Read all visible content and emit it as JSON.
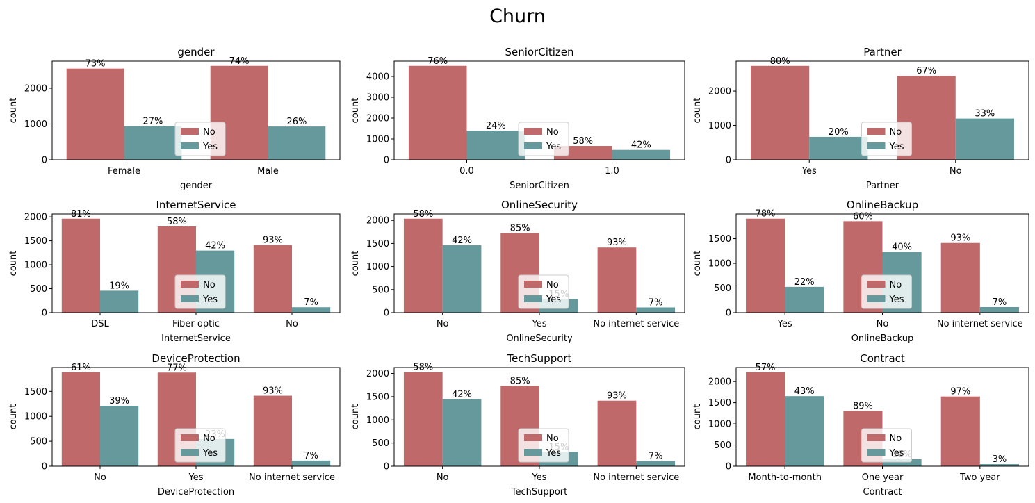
{
  "figure": {
    "suptitle": "Churn"
  },
  "colors": {
    "no": "#c0696b",
    "yes": "#65999b",
    "axis": "#000000"
  },
  "chart_data": [
    {
      "type": "bar",
      "title": "gender",
      "xlabel": "gender",
      "ylabel": "count",
      "categories": [
        "Female",
        "Male"
      ],
      "series": [
        {
          "name": "No",
          "values": [
            2549,
            2625
          ]
        },
        {
          "name": "Yes",
          "values": [
            939,
            930
          ]
        }
      ],
      "percent_labels": [
        [
          "73%",
          "74%"
        ],
        [
          "27%",
          "26%"
        ]
      ],
      "yticks": [
        0,
        1000,
        2000
      ],
      "ylim": [
        0,
        2756
      ],
      "legend": {
        "title": "",
        "entries": [
          "No",
          "Yes"
        ],
        "loc": "lower center"
      }
    },
    {
      "type": "bar",
      "title": "SeniorCitizen",
      "xlabel": "SeniorCitizen",
      "ylabel": "count",
      "categories": [
        "0.0",
        "1.0"
      ],
      "series": [
        {
          "name": "No",
          "values": [
            4508,
            666
          ]
        },
        {
          "name": "Yes",
          "values": [
            1393,
            476
          ]
        }
      ],
      "percent_labels": [
        [
          "76%",
          "58%"
        ],
        [
          "24%",
          "42%"
        ]
      ],
      "yticks": [
        0,
        1000,
        2000,
        3000,
        4000
      ],
      "ylim": [
        0,
        4733
      ],
      "legend": {
        "title": "",
        "entries": [
          "No",
          "Yes"
        ],
        "loc": "lower center"
      }
    },
    {
      "type": "bar",
      "title": "Partner",
      "xlabel": "Partner",
      "ylabel": "count",
      "categories": [
        "Yes",
        "No"
      ],
      "series": [
        {
          "name": "No",
          "values": [
            2733,
            2441
          ]
        },
        {
          "name": "Yes",
          "values": [
            669,
            1200
          ]
        }
      ],
      "percent_labels": [
        [
          "80%",
          "67%"
        ],
        [
          "20%",
          "33%"
        ]
      ],
      "yticks": [
        0,
        1000,
        2000
      ],
      "ylim": [
        0,
        2870
      ],
      "legend": {
        "title": "",
        "entries": [
          "No",
          "Yes"
        ],
        "loc": "lower center"
      }
    },
    {
      "type": "bar",
      "title": "InternetService",
      "xlabel": "InternetService",
      "ylabel": "count",
      "categories": [
        "DSL",
        "Fiber optic",
        "No"
      ],
      "series": [
        {
          "name": "No",
          "values": [
            1962,
            1799,
            1413
          ]
        },
        {
          "name": "Yes",
          "values": [
            459,
            1297,
            113
          ]
        }
      ],
      "percent_labels": [
        [
          "81%",
          "58%",
          "93%"
        ],
        [
          "19%",
          "42%",
          "7%"
        ]
      ],
      "yticks": [
        0,
        500,
        1000,
        1500,
        2000
      ],
      "ylim": [
        0,
        2060
      ],
      "legend": {
        "title": "",
        "entries": [
          "No",
          "Yes"
        ],
        "loc": "lower center"
      }
    },
    {
      "type": "bar",
      "title": "OnlineSecurity",
      "xlabel": "OnlineSecurity",
      "ylabel": "count",
      "categories": [
        "No",
        "Yes",
        "No internet service"
      ],
      "series": [
        {
          "name": "No",
          "values": [
            2037,
            1724,
            1413
          ]
        },
        {
          "name": "Yes",
          "values": [
            1461,
            295,
            113
          ]
        }
      ],
      "percent_labels": [
        [
          "58%",
          "85%",
          "93%"
        ],
        [
          "42%",
          "15%",
          "7%"
        ]
      ],
      "yticks": [
        0,
        500,
        1000,
        1500,
        2000
      ],
      "ylim": [
        0,
        2139
      ],
      "legend": {
        "title": "",
        "entries": [
          "No",
          "Yes"
        ],
        "loc": "lower center"
      }
    },
    {
      "type": "bar",
      "title": "OnlineBackup",
      "xlabel": "OnlineBackup",
      "ylabel": "count",
      "categories": [
        "Yes",
        "No",
        "No internet service"
      ],
      "series": [
        {
          "name": "No",
          "values": [
            1906,
            1855,
            1413
          ]
        },
        {
          "name": "Yes",
          "values": [
            523,
            1233,
            113
          ]
        }
      ],
      "percent_labels": [
        [
          "78%",
          "60%",
          "93%"
        ],
        [
          "22%",
          "40%",
          "7%"
        ]
      ],
      "yticks": [
        0,
        500,
        1000,
        1500
      ],
      "ylim": [
        0,
        2001
      ],
      "legend": {
        "title": "",
        "entries": [
          "No",
          "Yes"
        ],
        "loc": "lower center"
      }
    },
    {
      "type": "bar",
      "title": "DeviceProtection",
      "xlabel": "DeviceProtection",
      "ylabel": "count",
      "categories": [
        "No",
        "Yes",
        "No internet service"
      ],
      "series": [
        {
          "name": "No",
          "values": [
            1884,
            1877,
            1413
          ]
        },
        {
          "name": "Yes",
          "values": [
            1211,
            545,
            113
          ]
        }
      ],
      "percent_labels": [
        [
          "61%",
          "77%",
          "93%"
        ],
        [
          "39%",
          "23%",
          "7%"
        ]
      ],
      "yticks": [
        0,
        500,
        1000,
        1500
      ],
      "ylim": [
        0,
        1978
      ],
      "legend": {
        "title": "",
        "entries": [
          "No",
          "Yes"
        ],
        "loc": "lower center"
      }
    },
    {
      "type": "bar",
      "title": "TechSupport",
      "xlabel": "TechSupport",
      "ylabel": "count",
      "categories": [
        "No",
        "Yes",
        "No internet service"
      ],
      "series": [
        {
          "name": "No",
          "values": [
            2027,
            1734,
            1413
          ]
        },
        {
          "name": "Yes",
          "values": [
            1446,
            310,
            113
          ]
        }
      ],
      "percent_labels": [
        [
          "58%",
          "85%",
          "93%"
        ],
        [
          "42%",
          "15%",
          "7%"
        ]
      ],
      "yticks": [
        0,
        500,
        1000,
        1500,
        2000
      ],
      "ylim": [
        0,
        2128
      ],
      "legend": {
        "title": "",
        "entries": [
          "No",
          "Yes"
        ],
        "loc": "lower center"
      }
    },
    {
      "type": "bar",
      "title": "Contract",
      "xlabel": "Contract",
      "ylabel": "count",
      "categories": [
        "Month-to-month",
        "One year",
        "Two year"
      ],
      "series": [
        {
          "name": "No",
          "values": [
            2220,
            1307,
            1647
          ]
        },
        {
          "name": "Yes",
          "values": [
            1655,
            166,
            48
          ]
        }
      ],
      "percent_labels": [
        [
          "57%",
          "89%",
          "97%"
        ],
        [
          "43%",
          "11%",
          "3%"
        ]
      ],
      "yticks": [
        0,
        500,
        1000,
        1500,
        2000
      ],
      "ylim": [
        0,
        2331
      ],
      "legend": {
        "title": "",
        "entries": [
          "No",
          "Yes"
        ],
        "loc": "lower center"
      }
    }
  ]
}
